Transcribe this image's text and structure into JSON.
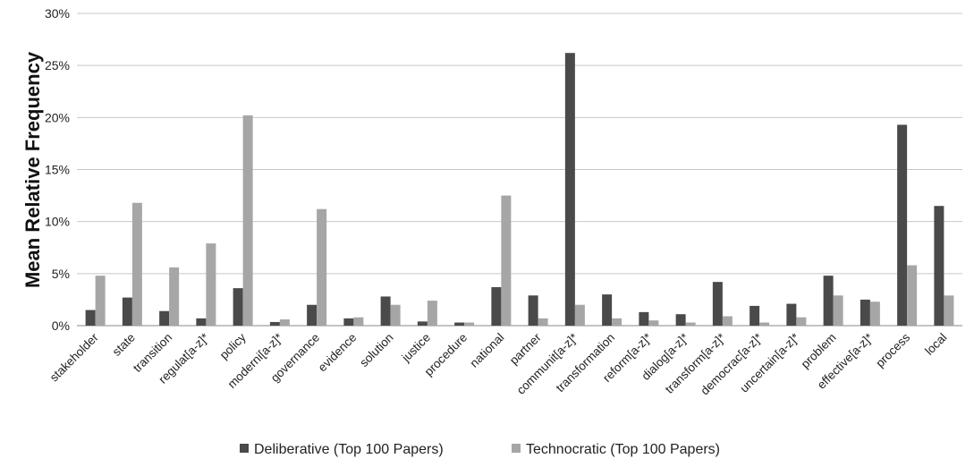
{
  "chart_data": {
    "type": "bar",
    "title": "",
    "xlabel": "",
    "ylabel": "Mean Relative Frequency",
    "ylim": [
      0,
      30
    ],
    "yticks": [
      "0%",
      "5%",
      "10%",
      "15%",
      "20%",
      "25%",
      "30%"
    ],
    "ytick_values": [
      0,
      5,
      10,
      15,
      20,
      25,
      30
    ],
    "grid": "horizontal",
    "legend_position": "bottom",
    "categories": [
      "stakeholder",
      "state",
      "transition",
      "regulat[a-z]*",
      "policy",
      "moderni[a-z]*",
      "governance",
      "evidence",
      "solution",
      "justice",
      "procedure",
      "national",
      "partner",
      "communit[a-z]*",
      "transformation",
      "reform[a-z]*",
      "dialog[a-z]*",
      "transform[a-z]*",
      "democrac[a-z]*",
      "uncertain[a-z]*",
      "problem",
      "effective[a-z]*",
      "process",
      "local"
    ],
    "series": [
      {
        "name": "Deliberative (Top 100 Papers)",
        "color": "#4a4a4a",
        "values": [
          1.5,
          2.7,
          1.4,
          0.7,
          3.6,
          0.35,
          2.0,
          0.7,
          2.8,
          0.4,
          0.3,
          3.7,
          2.9,
          26.2,
          3.0,
          1.3,
          1.1,
          4.2,
          1.9,
          2.1,
          4.8,
          2.5,
          19.3,
          11.5
        ]
      },
      {
        "name": "Technocratic (Top 100 Papers)",
        "color": "#a6a6a6",
        "values": [
          4.8,
          11.8,
          5.6,
          7.9,
          20.2,
          0.6,
          11.2,
          0.8,
          2.0,
          2.4,
          0.3,
          12.5,
          0.7,
          2.0,
          0.7,
          0.5,
          0.3,
          0.9,
          0.3,
          0.8,
          2.9,
          2.3,
          5.8,
          2.9
        ]
      }
    ]
  }
}
